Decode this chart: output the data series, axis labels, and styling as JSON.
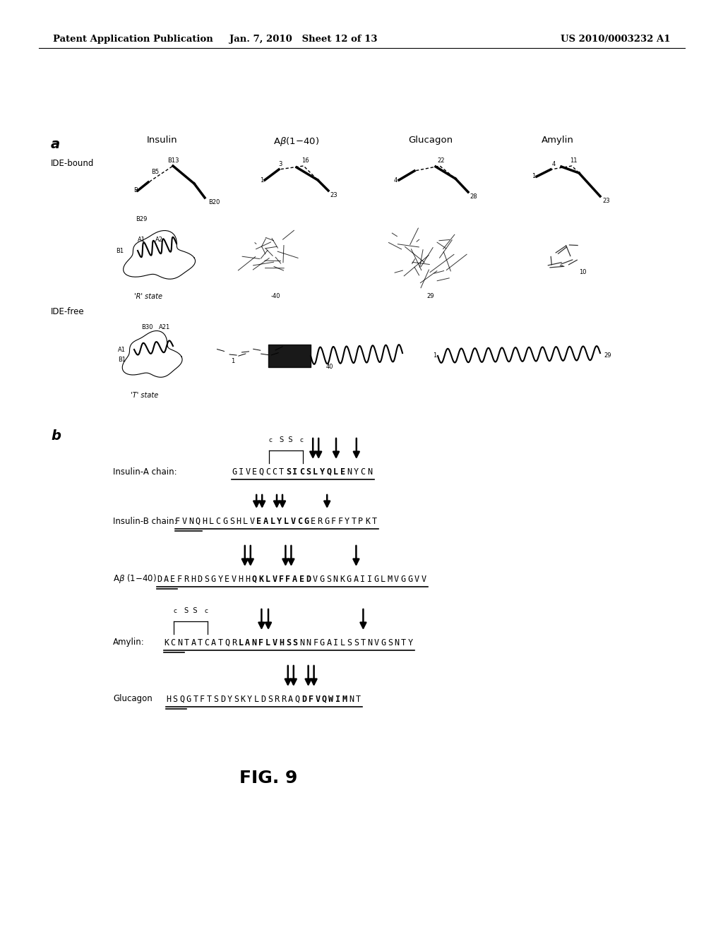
{
  "header_left": "Patent Application Publication",
  "header_mid": "Jan. 7, 2010   Sheet 12 of 13",
  "header_right": "US 2010/0003232 A1",
  "fig_label": "FIG. 9",
  "bg_color": "#ffffff"
}
